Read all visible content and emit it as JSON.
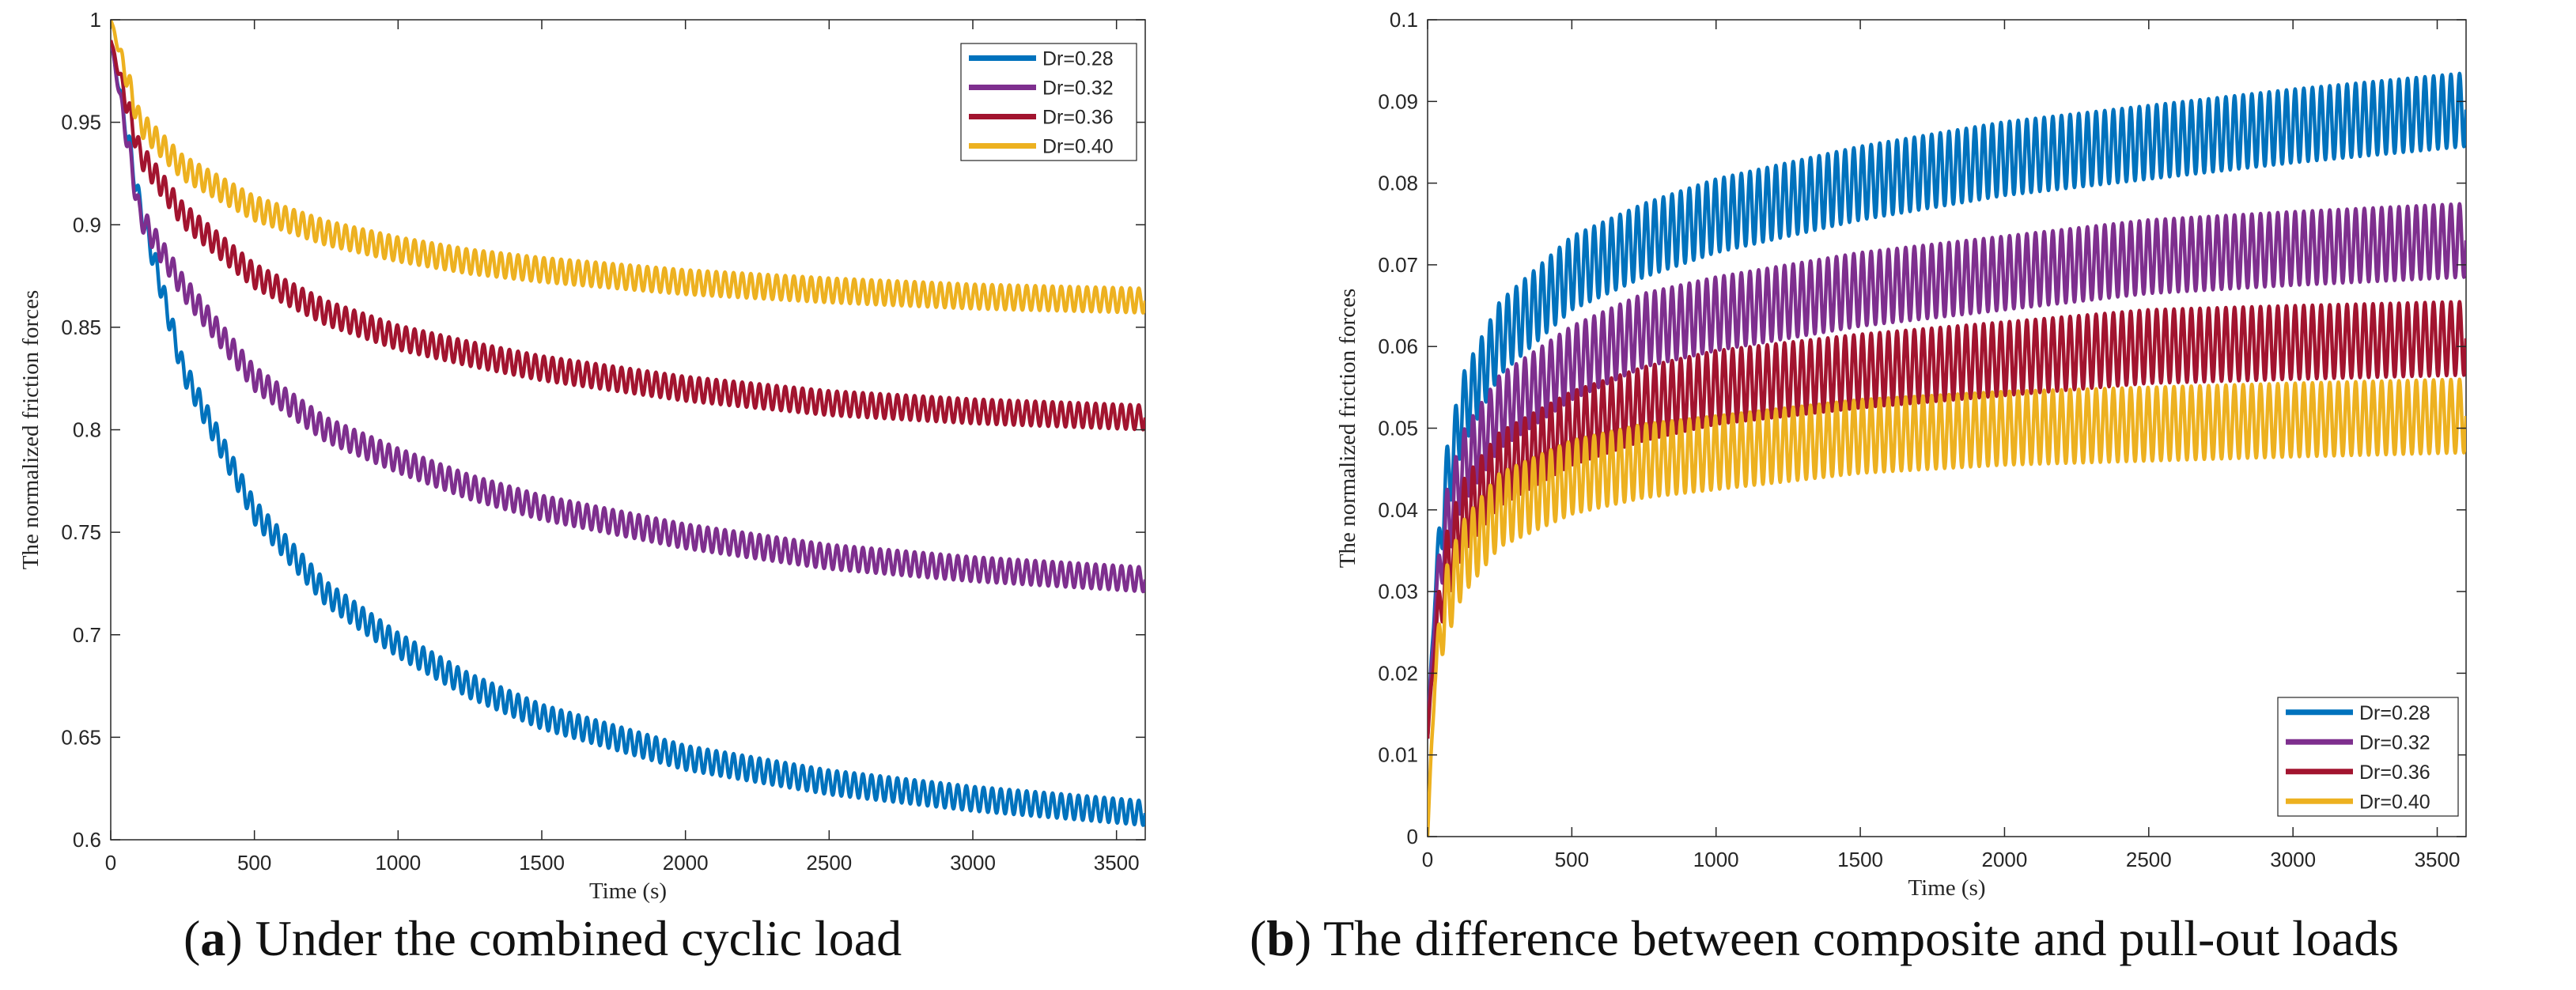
{
  "captions": [
    {
      "letter": "a",
      "text": "Under the combined cyclic load"
    },
    {
      "letter": "b",
      "text": "The difference between composite and pull-out loads"
    }
  ],
  "chart_data": [
    {
      "type": "line",
      "panel": "a",
      "xlabel": "Time (s)",
      "ylabel": "The normalized friction forces",
      "xlim": [
        0,
        3600
      ],
      "ylim": [
        0.6,
        1.0
      ],
      "xticks": [
        0,
        500,
        1000,
        1500,
        2000,
        2500,
        3000,
        3500
      ],
      "yticks": [
        0.6,
        0.65,
        0.7,
        0.75,
        0.8,
        0.85,
        0.9,
        0.95,
        1
      ],
      "ytick_labels": [
        "0.6",
        "0.65",
        "0.7",
        "0.75",
        "0.8",
        "0.85",
        "0.9",
        "0.95",
        "1"
      ],
      "legend_position": "top-right",
      "oscillation": {
        "cycles": 120,
        "amplitude": 0.006
      },
      "series": [
        {
          "name": "Dr=0.28",
          "color": "#0072BD",
          "x": [
            0,
            100,
            250,
            500,
            750,
            1000,
            1250,
            1500,
            2000,
            2500,
            3000,
            3600
          ],
          "y": [
            0.99,
            0.91,
            0.83,
            0.76,
            0.72,
            0.695,
            0.675,
            0.66,
            0.64,
            0.628,
            0.62,
            0.613
          ]
        },
        {
          "name": "Dr=0.32",
          "color": "#7E2F8E",
          "x": [
            0,
            100,
            250,
            500,
            750,
            1000,
            1250,
            1500,
            2000,
            2500,
            3000,
            3600
          ],
          "y": [
            0.99,
            0.905,
            0.87,
            0.825,
            0.8,
            0.785,
            0.772,
            0.762,
            0.748,
            0.738,
            0.732,
            0.727
          ]
        },
        {
          "name": "Dr=0.36",
          "color": "#A2142F",
          "x": [
            0,
            100,
            250,
            500,
            750,
            1000,
            1250,
            1500,
            2000,
            2500,
            3000,
            3600
          ],
          "y": [
            0.99,
            0.935,
            0.905,
            0.875,
            0.857,
            0.845,
            0.837,
            0.83,
            0.82,
            0.813,
            0.809,
            0.806
          ]
        },
        {
          "name": "Dr=0.40",
          "color": "#EDB120",
          "x": [
            0,
            100,
            250,
            500,
            750,
            1000,
            1250,
            1500,
            2000,
            2500,
            3000,
            3600
          ],
          "y": [
            1.0,
            0.95,
            0.928,
            0.908,
            0.896,
            0.888,
            0.882,
            0.878,
            0.872,
            0.868,
            0.865,
            0.863
          ]
        }
      ]
    },
    {
      "type": "line",
      "panel": "b",
      "xlabel": "Time (s)",
      "ylabel": "The normalized friction forces",
      "xlim": [
        0,
        3600
      ],
      "ylim": [
        0,
        0.1
      ],
      "xticks": [
        0,
        500,
        1000,
        1500,
        2000,
        2500,
        3000,
        3500
      ],
      "yticks": [
        0,
        0.01,
        0.02,
        0.03,
        0.04,
        0.05,
        0.06,
        0.07,
        0.08,
        0.09,
        0.1
      ],
      "ytick_labels": [
        "0",
        "0.01",
        "0.02",
        "0.03",
        "0.04",
        "0.05",
        "0.06",
        "0.07",
        "0.08",
        "0.09",
        "0.1"
      ],
      "legend_position": "bottom-right",
      "oscillation": {
        "cycles": 120,
        "amplitude": 0.0045
      },
      "series": [
        {
          "name": "Dr=0.28",
          "color": "#0072BD",
          "x": [
            0,
            25,
            60,
            120,
            250,
            500,
            750,
            1000,
            1500,
            2000,
            2500,
            3000,
            3600
          ],
          "y": [
            0.012,
            0.03,
            0.042,
            0.052,
            0.061,
            0.069,
            0.073,
            0.076,
            0.08,
            0.083,
            0.085,
            0.087,
            0.089
          ]
        },
        {
          "name": "Dr=0.32",
          "color": "#7E2F8E",
          "x": [
            0,
            25,
            60,
            120,
            250,
            500,
            750,
            1000,
            1500,
            2000,
            2500,
            3000,
            3600
          ],
          "y": [
            0.012,
            0.028,
            0.037,
            0.045,
            0.052,
            0.058,
            0.062,
            0.064,
            0.067,
            0.069,
            0.071,
            0.072,
            0.073
          ]
        },
        {
          "name": "Dr=0.36",
          "color": "#A2142F",
          "x": [
            0,
            25,
            60,
            120,
            250,
            500,
            750,
            1000,
            1500,
            2000,
            2500,
            3000,
            3600
          ],
          "y": [
            0.012,
            0.024,
            0.032,
            0.039,
            0.045,
            0.05,
            0.053,
            0.055,
            0.057,
            0.0585,
            0.06,
            0.0605,
            0.061
          ]
        },
        {
          "name": "Dr=0.40",
          "color": "#EDB120",
          "x": [
            0,
            25,
            60,
            120,
            250,
            500,
            750,
            1000,
            1500,
            2000,
            2500,
            3000,
            3600
          ],
          "y": [
            0.0,
            0.02,
            0.028,
            0.034,
            0.04,
            0.044,
            0.046,
            0.047,
            0.049,
            0.05,
            0.0505,
            0.051,
            0.0515
          ]
        }
      ]
    }
  ]
}
